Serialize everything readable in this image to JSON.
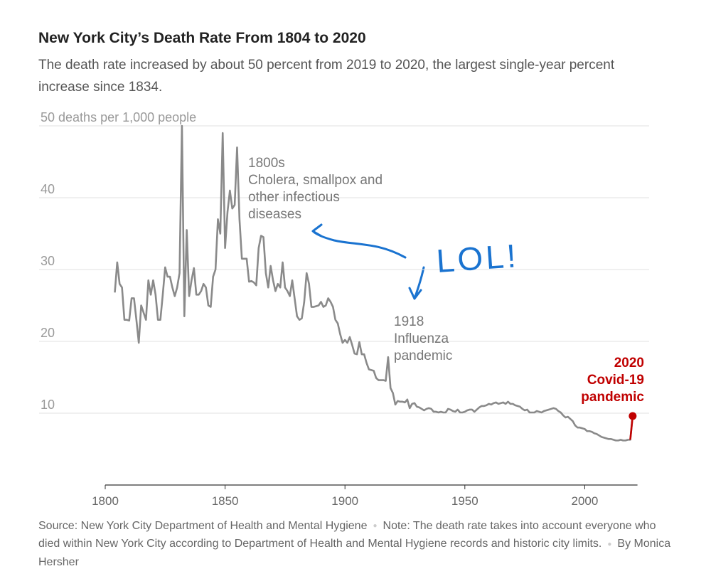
{
  "chart_data": {
    "type": "line",
    "title": "New York City’s Death Rate From 1804 to 2020",
    "subtitle": "The death rate increased by about 50 percent from 2019 to 2020, the largest single-year percent increase since 1834.",
    "x": [
      1804,
      1805,
      1806,
      1807,
      1808,
      1809,
      1810,
      1811,
      1812,
      1813,
      1814,
      1815,
      1816,
      1817,
      1818,
      1819,
      1820,
      1821,
      1822,
      1823,
      1824,
      1825,
      1826,
      1827,
      1828,
      1829,
      1830,
      1831,
      1832,
      1833,
      1834,
      1835,
      1836,
      1837,
      1838,
      1839,
      1840,
      1841,
      1842,
      1843,
      1844,
      1845,
      1846,
      1847,
      1848,
      1849,
      1850,
      1851,
      1852,
      1853,
      1854,
      1855,
      1856,
      1857,
      1858,
      1859,
      1860,
      1861,
      1862,
      1863,
      1864,
      1865,
      1866,
      1867,
      1868,
      1869,
      1870,
      1871,
      1872,
      1873,
      1874,
      1875,
      1876,
      1877,
      1878,
      1879,
      1880,
      1881,
      1882,
      1883,
      1884,
      1885,
      1886,
      1887,
      1888,
      1889,
      1890,
      1891,
      1892,
      1893,
      1894,
      1895,
      1896,
      1897,
      1898,
      1899,
      1900,
      1901,
      1902,
      1903,
      1904,
      1905,
      1906,
      1907,
      1908,
      1909,
      1910,
      1911,
      1912,
      1913,
      1914,
      1915,
      1916,
      1917,
      1918,
      1919,
      1920,
      1921,
      1922,
      1923,
      1924,
      1925,
      1926,
      1927,
      1928,
      1929,
      1930,
      1931,
      1932,
      1933,
      1934,
      1935,
      1936,
      1937,
      1938,
      1939,
      1940,
      1941,
      1942,
      1943,
      1944,
      1945,
      1946,
      1947,
      1948,
      1949,
      1950,
      1951,
      1952,
      1953,
      1954,
      1955,
      1956,
      1957,
      1958,
      1959,
      1960,
      1961,
      1962,
      1963,
      1964,
      1965,
      1966,
      1967,
      1968,
      1969,
      1970,
      1971,
      1972,
      1973,
      1974,
      1975,
      1976,
      1977,
      1978,
      1979,
      1980,
      1981,
      1982,
      1983,
      1984,
      1985,
      1986,
      1987,
      1988,
      1989,
      1990,
      1991,
      1992,
      1993,
      1994,
      1995,
      1996,
      1997,
      1998,
      1999,
      2000,
      2001,
      2002,
      2003,
      2004,
      2005,
      2006,
      2007,
      2008,
      2009,
      2010,
      2011,
      2012,
      2013,
      2014,
      2015,
      2016,
      2017,
      2018,
      2019,
      2020
    ],
    "series": [
      {
        "color": "#8a8a8a",
        "highlight_color": "#c00000",
        "values": [
          26.8,
          31,
          28,
          27.5,
          23,
          23,
          22.9,
          26,
          26,
          23,
          19.8,
          25,
          24,
          23,
          28.5,
          26.5,
          28.5,
          26.5,
          23,
          23,
          26.5,
          30.3,
          29,
          29,
          27.5,
          26.3,
          27.5,
          29.5,
          50,
          23.5,
          35.5,
          26.3,
          28.5,
          30.2,
          26.5,
          26.5,
          27,
          28,
          27.5,
          25,
          24.8,
          29,
          30,
          37,
          35,
          49,
          33,
          38,
          41,
          38.5,
          39,
          47,
          37,
          31.5,
          31.5,
          31.5,
          28.3,
          28.4,
          28.2,
          27.8,
          33,
          34.7,
          34.5,
          29.5,
          27.5,
          30.5,
          28.5,
          27,
          28,
          27.5,
          31,
          27.5,
          27,
          26.3,
          28.5,
          26,
          23.5,
          23,
          23.2,
          25.5,
          29.5,
          28,
          24.8,
          24.8,
          24.9,
          25,
          25.5,
          24.8,
          25,
          26,
          25.5,
          24.8,
          23,
          22.5,
          21,
          19.8,
          20.2,
          19.8,
          20.6,
          19.5,
          18.3,
          18.2,
          19.9,
          18.2,
          18.2,
          17,
          16.1,
          16,
          15.9,
          14.9,
          14.6,
          14.6,
          14.6,
          14.5,
          17.8,
          13.5,
          12.8,
          11.2,
          11.7,
          11.6,
          11.6,
          11.5,
          11.9,
          10.7,
          11.3,
          11.4,
          10.9,
          10.8,
          10.6,
          10.4,
          10.6,
          10.7,
          10.6,
          10.2,
          10.2,
          10.1,
          10.2,
          10.1,
          10.1,
          10.6,
          10.5,
          10.3,
          10.2,
          10.5,
          10.1,
          10.1,
          10.2,
          10.4,
          10.5,
          10.5,
          10.2,
          10.5,
          10.8,
          11,
          11,
          11.1,
          11.3,
          11.2,
          11.4,
          11.5,
          11.3,
          11.4,
          11.5,
          11.3,
          11.6,
          11.3,
          11.3,
          11.1,
          11,
          10.9,
          10.6,
          10.4,
          10.5,
          10.1,
          10.1,
          10.1,
          10.3,
          10.2,
          10.1,
          10.3,
          10.4,
          10.5,
          10.6,
          10.7,
          10.6,
          10.3,
          10.1,
          9.7,
          9.4,
          9.5,
          9.2,
          8.9,
          8.3,
          8,
          8,
          7.9,
          7.8,
          7.5,
          7.5,
          7.4,
          7.2,
          7.1,
          6.9,
          6.7,
          6.6,
          6.5,
          6.4,
          6.4,
          6.3,
          6.2,
          6.2,
          6.3,
          6.2,
          6.2,
          6.3,
          6.3,
          9.6
        ]
      }
    ],
    "xlim": [
      1800,
      2022
    ],
    "xticks": [
      1800,
      1850,
      1900,
      1950,
      2000
    ],
    "ylim": [
      0,
      50
    ],
    "yticks": [
      10,
      20,
      30,
      40,
      {
        "value": 50,
        "label": "50 deaths per 1,000 people"
      }
    ],
    "grid": true,
    "annotations": [
      {
        "lines": [
          "1800s",
          "Cholera, smallpox and",
          "other infectious",
          "diseases"
        ]
      },
      {
        "lines": [
          "1918",
          "Influenza",
          "pandemic"
        ]
      },
      {
        "lines": [
          "2020",
          "Covid-19",
          "pandemic"
        ]
      },
      {
        "lines": [
          "LOL!"
        ]
      }
    ],
    "source": "Source: New York City Department of Health and Mental Hygiene",
    "note": "Note: The death rate takes into account everyone who died within New York City according to Department of Health and Mental Hygiene records and historic city limits.",
    "byline": "By Monica Hersher"
  }
}
